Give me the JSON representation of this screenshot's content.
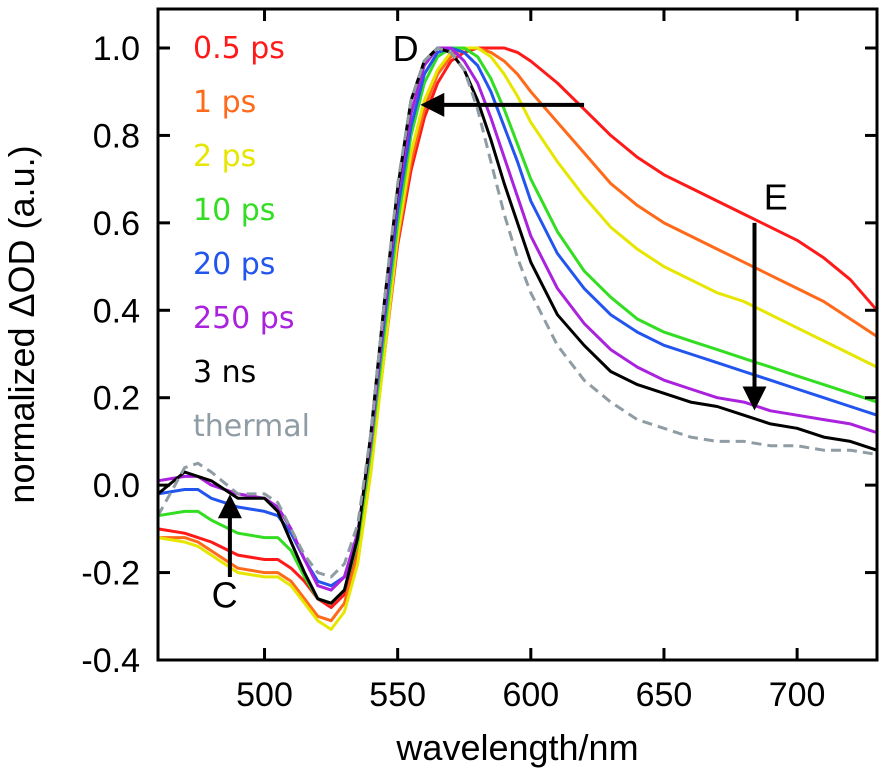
{
  "chart_data": {
    "type": "line",
    "title": "",
    "xlabel": "wavelength/nm",
    "ylabel": "normalized ΔOD (a.u.)",
    "xlim": [
      460,
      730
    ],
    "ylim": [
      -0.4,
      1.05
    ],
    "x_ticks": [
      500,
      550,
      600,
      650,
      700
    ],
    "x_tick_labels": [
      "500",
      "550",
      "600",
      "650",
      "700"
    ],
    "y_ticks": [
      -0.4,
      -0.2,
      0.0,
      0.2,
      0.4,
      0.6,
      0.8,
      1.0
    ],
    "y_tick_labels": [
      "-0.4",
      "-0.2",
      "0.0",
      "0.2",
      "0.4",
      "0.6",
      "0.8",
      "1.0"
    ],
    "grid": false,
    "legend_position": "top-left",
    "x": [
      460,
      470,
      475,
      480,
      490,
      500,
      505,
      510,
      515,
      520,
      525,
      530,
      535,
      540,
      545,
      550,
      555,
      560,
      565,
      570,
      575,
      580,
      585,
      590,
      595,
      600,
      610,
      620,
      630,
      640,
      650,
      660,
      670,
      680,
      690,
      700,
      710,
      720,
      730
    ],
    "series": [
      {
        "name": "0.5 ps",
        "color": "#ff1a1a",
        "dashed": false,
        "values": [
          -0.1,
          -0.11,
          -0.12,
          -0.13,
          -0.16,
          -0.17,
          -0.17,
          -0.19,
          -0.22,
          -0.26,
          -0.28,
          -0.25,
          -0.15,
          0.05,
          0.3,
          0.55,
          0.72,
          0.84,
          0.92,
          0.97,
          0.99,
          1.0,
          1.0,
          1.0,
          0.99,
          0.97,
          0.92,
          0.86,
          0.8,
          0.75,
          0.71,
          0.68,
          0.65,
          0.62,
          0.59,
          0.56,
          0.52,
          0.47,
          0.4
        ]
      },
      {
        "name": "1 ps",
        "color": "#ff6a1a",
        "dashed": false,
        "values": [
          -0.12,
          -0.12,
          -0.13,
          -0.15,
          -0.19,
          -0.2,
          -0.2,
          -0.22,
          -0.26,
          -0.3,
          -0.31,
          -0.27,
          -0.16,
          0.05,
          0.3,
          0.56,
          0.74,
          0.86,
          0.94,
          0.98,
          1.0,
          1.0,
          0.99,
          0.97,
          0.94,
          0.9,
          0.83,
          0.76,
          0.69,
          0.64,
          0.6,
          0.57,
          0.54,
          0.51,
          0.48,
          0.45,
          0.42,
          0.38,
          0.34
        ]
      },
      {
        "name": "2 ps",
        "color": "#e6e600",
        "dashed": false,
        "values": [
          -0.12,
          -0.13,
          -0.14,
          -0.16,
          -0.2,
          -0.21,
          -0.21,
          -0.23,
          -0.27,
          -0.31,
          -0.33,
          -0.29,
          -0.18,
          0.03,
          0.3,
          0.57,
          0.76,
          0.88,
          0.95,
          0.99,
          1.0,
          1.0,
          0.98,
          0.94,
          0.89,
          0.83,
          0.74,
          0.66,
          0.59,
          0.54,
          0.5,
          0.47,
          0.44,
          0.42,
          0.39,
          0.36,
          0.33,
          0.3,
          0.27
        ]
      },
      {
        "name": "10 ps",
        "color": "#33dd22",
        "dashed": false,
        "values": [
          -0.07,
          -0.06,
          -0.06,
          -0.08,
          -0.11,
          -0.12,
          -0.12,
          -0.15,
          -0.21,
          -0.26,
          -0.27,
          -0.24,
          -0.13,
          0.08,
          0.35,
          0.6,
          0.8,
          0.92,
          0.98,
          1.0,
          1.0,
          0.98,
          0.93,
          0.86,
          0.78,
          0.7,
          0.58,
          0.49,
          0.43,
          0.38,
          0.35,
          0.33,
          0.31,
          0.29,
          0.27,
          0.25,
          0.23,
          0.21,
          0.19
        ]
      },
      {
        "name": "20 ps",
        "color": "#2255ee",
        "dashed": false,
        "values": [
          -0.02,
          -0.01,
          -0.01,
          -0.03,
          -0.05,
          -0.06,
          -0.07,
          -0.11,
          -0.17,
          -0.22,
          -0.23,
          -0.21,
          -0.11,
          0.1,
          0.38,
          0.63,
          0.82,
          0.94,
          0.99,
          1.0,
          0.99,
          0.96,
          0.9,
          0.82,
          0.74,
          0.65,
          0.53,
          0.45,
          0.39,
          0.35,
          0.32,
          0.3,
          0.28,
          0.26,
          0.24,
          0.22,
          0.2,
          0.18,
          0.16
        ]
      },
      {
        "name": "250 ps",
        "color": "#aa22dd",
        "dashed": false,
        "values": [
          0.01,
          0.02,
          0.02,
          0.0,
          -0.02,
          -0.03,
          -0.05,
          -0.1,
          -0.17,
          -0.23,
          -0.24,
          -0.21,
          -0.11,
          0.1,
          0.4,
          0.66,
          0.85,
          0.96,
          1.0,
          1.0,
          0.97,
          0.92,
          0.84,
          0.75,
          0.66,
          0.57,
          0.45,
          0.37,
          0.31,
          0.27,
          0.24,
          0.22,
          0.2,
          0.19,
          0.17,
          0.16,
          0.15,
          0.14,
          0.12
        ]
      },
      {
        "name": "3 ns",
        "color": "#000000",
        "dashed": false,
        "values": [
          -0.02,
          0.03,
          0.02,
          0.01,
          -0.03,
          -0.03,
          -0.06,
          -0.13,
          -0.2,
          -0.26,
          -0.27,
          -0.24,
          -0.12,
          0.12,
          0.42,
          0.68,
          0.88,
          0.97,
          1.0,
          0.99,
          0.95,
          0.88,
          0.79,
          0.69,
          0.6,
          0.51,
          0.39,
          0.32,
          0.26,
          0.23,
          0.21,
          0.19,
          0.18,
          0.16,
          0.14,
          0.13,
          0.11,
          0.1,
          0.08
        ]
      },
      {
        "name": "thermal",
        "color": "#909ca4",
        "dashed": true,
        "values": [
          -0.07,
          0.04,
          0.05,
          0.03,
          -0.02,
          -0.02,
          -0.04,
          -0.1,
          -0.16,
          -0.2,
          -0.21,
          -0.18,
          -0.09,
          0.12,
          0.42,
          0.69,
          0.88,
          0.97,
          1.0,
          0.99,
          0.95,
          0.86,
          0.74,
          0.62,
          0.52,
          0.44,
          0.32,
          0.24,
          0.19,
          0.15,
          0.13,
          0.11,
          0.1,
          0.1,
          0.09,
          0.09,
          0.08,
          0.08,
          0.07
        ]
      }
    ],
    "legend": [
      {
        "label": "0.5 ps",
        "color": "#ff1a1a"
      },
      {
        "label": "1 ps",
        "color": "#ff6a1a"
      },
      {
        "label": "2 ps",
        "color": "#e6e600"
      },
      {
        "label": "10 ps",
        "color": "#33dd22"
      },
      {
        "label": "20 ps",
        "color": "#2255ee"
      },
      {
        "label": "250 ps",
        "color": "#aa22dd"
      },
      {
        "label": "3 ns",
        "color": "#000000"
      },
      {
        "label": "thermal",
        "color": "#909ca4"
      }
    ],
    "annotations": [
      {
        "label": "C",
        "arrow": "up",
        "arrow_x": 487,
        "arrow_from_y": -0.21,
        "arrow_to_y": -0.03,
        "label_x": 485,
        "label_y": -0.28
      },
      {
        "label": "D",
        "arrow": "left",
        "arrow_y": 0.87,
        "arrow_from_x": 620,
        "arrow_to_x": 560,
        "label_x": 553,
        "label_y": 0.97
      },
      {
        "label": "E",
        "arrow": "down",
        "arrow_x": 684,
        "arrow_from_y": 0.6,
        "arrow_to_y": 0.18,
        "label_x": 692,
        "label_y": 0.63
      }
    ]
  }
}
